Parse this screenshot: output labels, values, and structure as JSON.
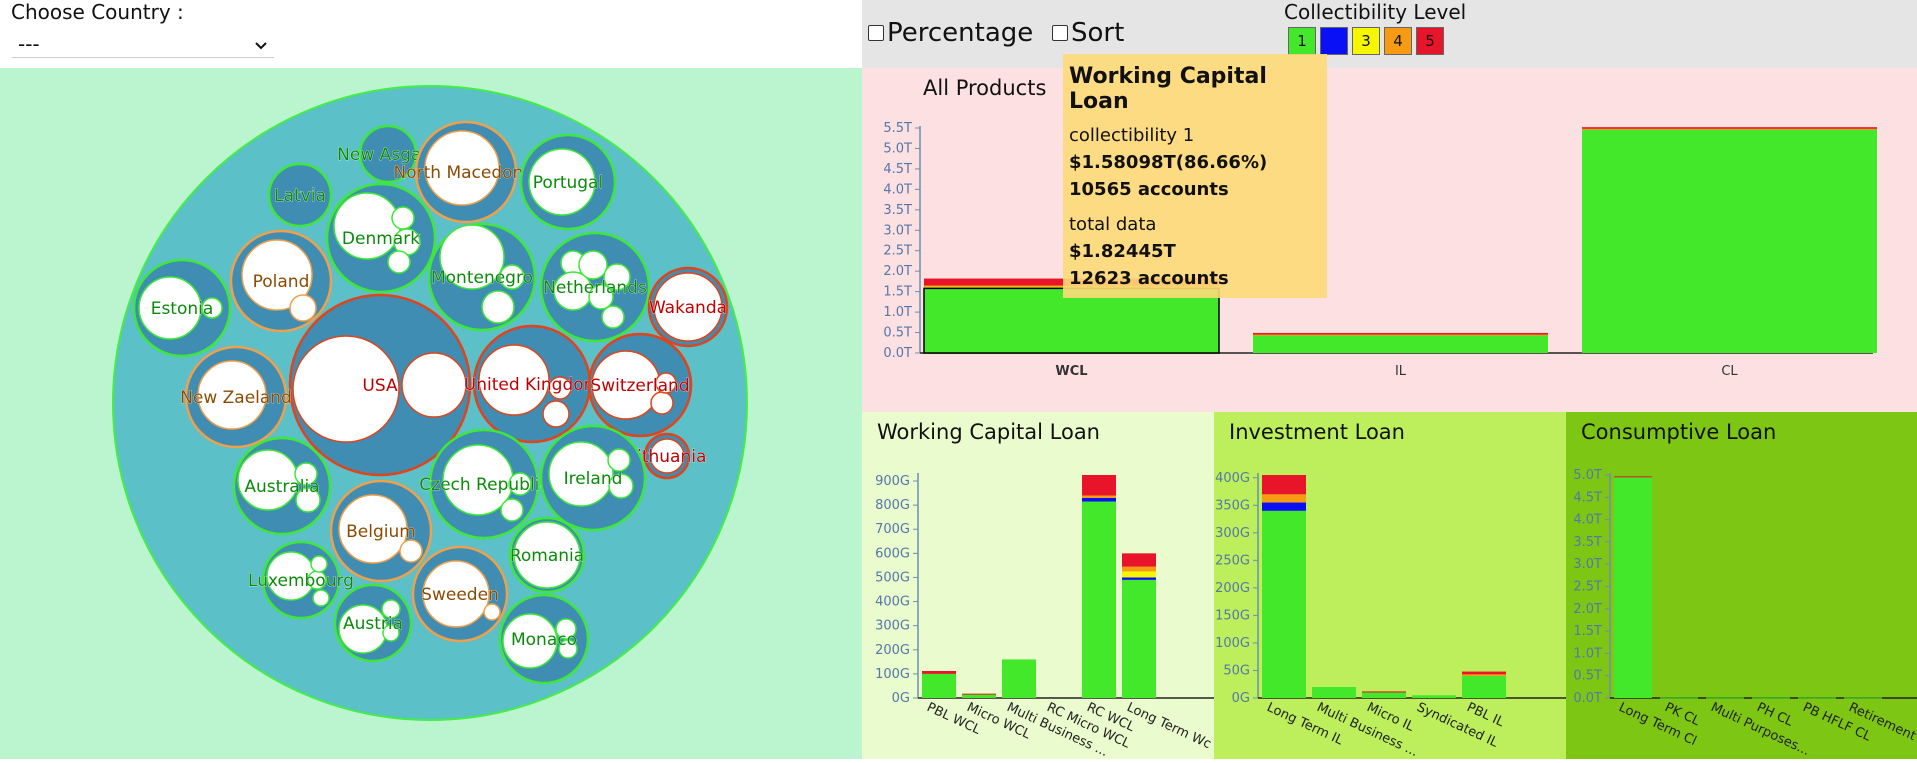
{
  "header": {
    "country_label": "Choose Country :",
    "country_value": "---",
    "percentage_label": "Percentage",
    "sort_label": "Sort",
    "legend_title": "Collectibility Level",
    "levels": [
      {
        "label": "1",
        "color": "#44e82a"
      },
      {
        "label": "2",
        "color": "#0a10f5"
      },
      {
        "label": "3",
        "color": "#f6f600"
      },
      {
        "label": "4",
        "color": "#f79a14"
      },
      {
        "label": "5",
        "color": "#e8142a"
      }
    ]
  },
  "bubble_chart": {
    "countries": [
      {
        "name": "New Asgard",
        "risk": "green"
      },
      {
        "name": "North Macedonia",
        "risk": "orange"
      },
      {
        "name": "Latvia",
        "risk": "green"
      },
      {
        "name": "Portugal",
        "risk": "green"
      },
      {
        "name": "Denmark",
        "risk": "green"
      },
      {
        "name": "Poland",
        "risk": "orange"
      },
      {
        "name": "Montenegro",
        "risk": "green"
      },
      {
        "name": "Netherlands",
        "risk": "green"
      },
      {
        "name": "Estonia",
        "risk": "green"
      },
      {
        "name": "Wakanda",
        "risk": "red"
      },
      {
        "name": "USA",
        "risk": "red"
      },
      {
        "name": "United Kingdom",
        "risk": "red"
      },
      {
        "name": "Switzerland",
        "risk": "red"
      },
      {
        "name": "New Zaeland",
        "risk": "orange"
      },
      {
        "name": "Lithuania",
        "risk": "red"
      },
      {
        "name": "Australia",
        "risk": "green"
      },
      {
        "name": "Czech Republic",
        "risk": "green"
      },
      {
        "name": "Ireland",
        "risk": "green"
      },
      {
        "name": "Belgium",
        "risk": "orange"
      },
      {
        "name": "Romania",
        "risk": "green"
      },
      {
        "name": "Luxembourg",
        "risk": "green"
      },
      {
        "name": "Sweeden",
        "risk": "orange"
      },
      {
        "name": "Austria",
        "risk": "green"
      },
      {
        "name": "Monaco",
        "risk": "green"
      }
    ]
  },
  "tooltip": {
    "title": "Working Capital Loan",
    "level_line": "collectibility 1",
    "amount": "$1.58098T(86.66%)",
    "accounts": "10565 accounts",
    "total_label": "total data",
    "total_amount": "$1.82445T",
    "total_accounts": "12623 accounts"
  },
  "chart_data": [
    {
      "id": "all",
      "type": "bar",
      "title": "All Products",
      "categories": [
        "WCL",
        "IL",
        "CL"
      ],
      "highlighted_category": "WCL",
      "yticks": [
        "0.0T",
        "0.5T",
        "1.0T",
        "1.5T",
        "2.0T",
        "2.5T",
        "3.0T",
        "3.5T",
        "4.0T",
        "4.5T",
        "5.0T",
        "5.5T"
      ],
      "ylim": [
        0,
        5.5
      ],
      "unit": "T",
      "series": [
        {
          "name": "1",
          "values": [
            1.58,
            0.44,
            5.47
          ]
        },
        {
          "name": "2",
          "values": [
            0.02,
            0.0,
            0.0
          ]
        },
        {
          "name": "3",
          "values": [
            0.02,
            0.0,
            0.0
          ]
        },
        {
          "name": "4",
          "values": [
            0.03,
            0.01,
            0.01
          ]
        },
        {
          "name": "5",
          "values": [
            0.17,
            0.04,
            0.04
          ]
        }
      ]
    },
    {
      "id": "wcl",
      "type": "bar",
      "title": "Working Capital Loan",
      "categories": [
        "PBL WCL",
        "Micro WCL",
        "Multi Business ...",
        "RC Micro WCL",
        "RC WCL",
        "Long Term Wc"
      ],
      "yticks": [
        "0G",
        "100G",
        "200G",
        "300G",
        "400G",
        "500G",
        "600G",
        "700G",
        "800G",
        "900G"
      ],
      "ylim": [
        0,
        925
      ],
      "unit": "G",
      "series": [
        {
          "name": "1",
          "values": [
            100,
            15,
            160,
            0,
            815,
            490
          ]
        },
        {
          "name": "2",
          "values": [
            0,
            0,
            0,
            0,
            15,
            10
          ]
        },
        {
          "name": "3",
          "values": [
            0,
            0,
            0,
            0,
            0,
            25
          ]
        },
        {
          "name": "4",
          "values": [
            0,
            0,
            0,
            0,
            10,
            20
          ]
        },
        {
          "name": "5",
          "values": [
            12,
            3,
            0,
            0,
            85,
            55
          ]
        }
      ]
    },
    {
      "id": "il",
      "type": "bar",
      "title": "Investment Loan",
      "categories": [
        "Long Term IL",
        "Multi Business ...",
        "Micro IL",
        "Syndicated IL",
        "PBL IL"
      ],
      "yticks": [
        "0G",
        "50G",
        "100G",
        "150G",
        "200G",
        "250G",
        "300G",
        "350G",
        "400G"
      ],
      "ylim": [
        0,
        405
      ],
      "unit": "G",
      "series": [
        {
          "name": "1",
          "values": [
            340,
            20,
            10,
            5,
            40
          ]
        },
        {
          "name": "2",
          "values": [
            15,
            0,
            0,
            0,
            0
          ]
        },
        {
          "name": "3",
          "values": [
            0,
            0,
            0,
            0,
            0
          ]
        },
        {
          "name": "4",
          "values": [
            15,
            0,
            0,
            0,
            3
          ]
        },
        {
          "name": "5",
          "values": [
            35,
            0,
            2,
            0,
            5
          ]
        }
      ]
    },
    {
      "id": "cl",
      "type": "bar",
      "title": "Consumptive Loan",
      "categories": [
        "Long Term Cl",
        "PK CL",
        "Multi Purposes...",
        "PH CL",
        "PB HFLF CL",
        "Retirement Cl"
      ],
      "yticks": [
        "0.0T",
        "0.5T",
        "1.0T",
        "1.5T",
        "2.0T",
        "2.5T",
        "3.0T",
        "3.5T",
        "4.0T",
        "4.5T",
        "5.0T"
      ],
      "ylim": [
        0,
        5.0
      ],
      "unit": "T",
      "series": [
        {
          "name": "1",
          "values": [
            4.95,
            0.01,
            0.01,
            0.01,
            0.01,
            0.01
          ]
        },
        {
          "name": "2",
          "values": [
            0,
            0,
            0,
            0,
            0,
            0
          ]
        },
        {
          "name": "3",
          "values": [
            0,
            0,
            0,
            0,
            0,
            0
          ]
        },
        {
          "name": "4",
          "values": [
            0,
            0,
            0,
            0,
            0,
            0
          ]
        },
        {
          "name": "5",
          "values": [
            0.02,
            0,
            0,
            0,
            0,
            0
          ]
        }
      ]
    }
  ]
}
